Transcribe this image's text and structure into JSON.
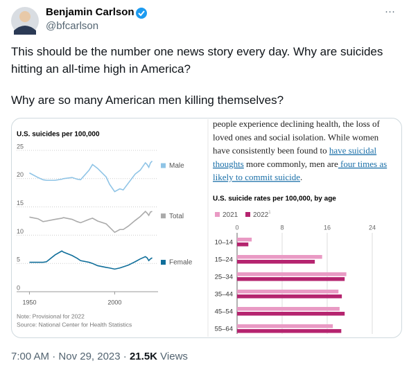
{
  "tweet": {
    "author": {
      "name": "Benjamin Carlson",
      "handle": "@bfcarlson",
      "more": "···"
    },
    "text": [
      "This should be the number one news story every day. Why are suicides hitting an all-time high in America?",
      "Why are so many American men killing themselves?"
    ],
    "footer": {
      "time": "7:00 AM",
      "separator": "·",
      "date": "Nov 29, 2023",
      "views": "21.5K",
      "views_label": "Views"
    }
  },
  "article": {
    "lines": [
      [
        {
          "text": "people experience declining health, the loss of"
        }
      ],
      [
        {
          "text": "loved ones and social isolation. While women"
        }
      ],
      [
        {
          "text": "have consistently been found to "
        },
        {
          "text": "have suicidal",
          "link": true
        }
      ],
      [
        {
          "text": "thoughts",
          "link": true
        },
        {
          "text": " more commonly, men are"
        },
        {
          "text": " four times as",
          "link": true
        }
      ],
      [
        {
          "text": "likely to commit suicide",
          "link": true
        },
        {
          "text": "."
        }
      ]
    ]
  },
  "chart_data": [
    {
      "type": "line",
      "title": "U.S. suicides per 100,000",
      "x": [
        1950,
        1955,
        1958,
        1960,
        1965,
        1969,
        1970,
        1975,
        1978,
        1980,
        1985,
        1987,
        1990,
        1995,
        1997,
        2000,
        2003,
        2005,
        2008,
        2010,
        2012,
        2015,
        2018,
        2019,
        2020,
        2021,
        2022
      ],
      "series": [
        {
          "name": "Male",
          "color": "#8fc4e6",
          "values": [
            21,
            20.2,
            19.8,
            19.7,
            19.7,
            19.9,
            20,
            20.2,
            19.9,
            19.8,
            21.5,
            22.5,
            21.8,
            20.3,
            19,
            17.7,
            18.2,
            18,
            19.2,
            20,
            20.8,
            21.5,
            22.8,
            22.5,
            22,
            22.8,
            23.1
          ]
        },
        {
          "name": "Total",
          "color": "#aaaaaa",
          "values": [
            13.2,
            12.9,
            12.4,
            12.5,
            12.8,
            13,
            13.1,
            12.8,
            12.4,
            12.2,
            12.8,
            13,
            12.5,
            12,
            11.4,
            10.5,
            11,
            11,
            11.6,
            12.1,
            12.6,
            13.3,
            14.2,
            13.9,
            13.5,
            14.1,
            14.2
          ]
        },
        {
          "name": "Female",
          "color": "#0f6e9a",
          "values": [
            5.2,
            5.2,
            5.2,
            5.3,
            6.5,
            7.2,
            7,
            6.4,
            5.9,
            5.5,
            5.2,
            5,
            4.6,
            4.3,
            4.2,
            4,
            4.2,
            4.4,
            4.7,
            5,
            5.3,
            5.8,
            6.2,
            6,
            5.5,
            5.8,
            6
          ]
        }
      ],
      "xlim": [
        1949,
        2023
      ],
      "xticks": [
        1950,
        2000
      ],
      "ylim": [
        0,
        25
      ],
      "yticks": [
        0,
        5,
        10,
        15,
        20,
        25
      ],
      "grid": true,
      "notes": [
        "Note: Provisional for 2022",
        "Source: National Center for Health Statistics"
      ]
    },
    {
      "type": "hbar",
      "title": "U.S. suicide rates per 100,000, by age",
      "categories": [
        "10–14",
        "15–24",
        "25–34",
        "35–44",
        "45–54",
        "55–64"
      ],
      "series": [
        {
          "name": "2021",
          "color": "#e99ac4",
          "values": [
            2.6,
            15.1,
            19.4,
            18,
            18.2,
            17
          ]
        },
        {
          "name": "2022",
          "note": "1",
          "color": "#b5246f",
          "values": [
            2,
            13.8,
            19.1,
            18.6,
            19.1,
            18.5
          ]
        }
      ],
      "xlim": [
        0,
        24
      ],
      "xticks": [
        0,
        8,
        16,
        24
      ],
      "grid": true
    }
  ]
}
